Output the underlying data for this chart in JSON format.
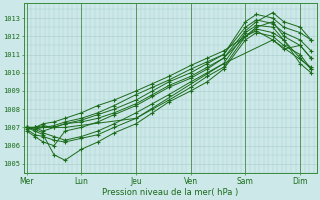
{
  "background_color": "#cce8e8",
  "grid_color": "#aacccc",
  "line_color": "#1a6b1a",
  "marker_color": "#1a6b1a",
  "xlabel": "Pression niveau de la mer( hPa )",
  "ylim": [
    1004.5,
    1013.8
  ],
  "yticks": [
    1005,
    1006,
    1007,
    1008,
    1009,
    1010,
    1011,
    1012,
    1013
  ],
  "day_labels": [
    "Mer",
    "Lun",
    "Jeu",
    "Ven",
    "Sam",
    "Dim"
  ],
  "day_positions": [
    0,
    1,
    2,
    3,
    4,
    5
  ],
  "xlim": [
    -0.05,
    5.3
  ],
  "lines": [
    {
      "x": [
        0.0,
        0.15,
        0.3,
        0.5,
        0.7,
        1.0,
        1.3,
        1.6,
        2.0,
        2.3,
        2.6,
        3.0,
        3.3,
        3.6,
        4.0,
        4.2,
        4.5,
        4.7,
        5.0,
        5.2
      ],
      "y": [
        1007.0,
        1006.9,
        1007.0,
        1007.1,
        1007.3,
        1007.5,
        1007.8,
        1008.2,
        1008.8,
        1009.2,
        1009.6,
        1010.2,
        1010.6,
        1011.0,
        1012.8,
        1013.2,
        1013.0,
        1012.5,
        1012.2,
        1011.8
      ]
    },
    {
      "x": [
        0.0,
        0.15,
        0.3,
        0.5,
        0.7,
        1.0,
        1.3,
        1.6,
        2.0,
        2.3,
        2.6,
        3.0,
        3.3,
        3.6,
        4.0,
        4.2,
        4.5,
        4.7,
        5.0,
        5.2
      ],
      "y": [
        1006.9,
        1006.6,
        1006.5,
        1006.3,
        1006.2,
        1006.4,
        1006.6,
        1007.0,
        1007.5,
        1008.0,
        1008.5,
        1009.2,
        1009.8,
        1010.3,
        1012.0,
        1012.5,
        1012.8,
        1012.0,
        1011.5,
        1010.8
      ]
    },
    {
      "x": [
        0.0,
        0.15,
        0.3,
        0.5,
        0.7,
        1.0,
        1.3,
        1.6,
        2.0,
        2.3,
        2.6,
        3.0,
        3.3,
        3.6,
        4.0,
        4.2,
        4.5,
        4.7,
        5.0,
        5.2
      ],
      "y": [
        1007.0,
        1007.0,
        1006.8,
        1007.0,
        1007.2,
        1007.3,
        1007.5,
        1007.8,
        1008.3,
        1008.8,
        1009.3,
        1009.8,
        1010.3,
        1010.8,
        1012.3,
        1012.8,
        1013.3,
        1012.8,
        1012.5,
        1011.8
      ]
    },
    {
      "x": [
        0.0,
        0.15,
        0.3,
        0.5,
        0.7,
        1.0,
        1.3,
        1.6,
        2.0,
        2.3,
        2.6,
        3.0,
        3.3,
        3.6,
        4.0,
        4.2,
        4.5,
        4.7,
        5.0,
        5.2
      ],
      "y": [
        1007.0,
        1006.8,
        1006.6,
        1005.5,
        1005.2,
        1005.8,
        1006.2,
        1006.7,
        1007.2,
        1007.8,
        1008.4,
        1009.0,
        1009.5,
        1010.2,
        1011.8,
        1012.2,
        1012.0,
        1011.5,
        1011.0,
        1010.2
      ]
    },
    {
      "x": [
        0.0,
        0.15,
        0.3,
        0.5,
        0.7,
        1.0,
        1.3,
        1.6,
        2.0,
        2.3,
        2.6,
        3.0,
        3.3,
        3.6,
        4.0,
        4.2,
        4.5,
        4.7,
        5.0,
        5.2
      ],
      "y": [
        1007.0,
        1007.0,
        1007.1,
        1007.0,
        1007.2,
        1007.4,
        1007.7,
        1008.0,
        1008.5,
        1009.0,
        1009.5,
        1010.0,
        1010.5,
        1011.0,
        1012.5,
        1012.9,
        1012.7,
        1012.2,
        1011.8,
        1011.2
      ]
    },
    {
      "x": [
        0.0,
        0.15,
        0.3,
        0.5,
        0.7,
        1.0,
        1.3,
        1.6,
        2.0,
        2.3,
        2.6,
        3.0,
        3.3,
        3.6,
        4.0,
        4.2,
        4.5,
        4.7,
        5.0,
        5.2
      ],
      "y": [
        1006.8,
        1006.5,
        1006.2,
        1006.0,
        1006.8,
        1007.0,
        1007.3,
        1007.7,
        1008.2,
        1008.7,
        1009.2,
        1009.7,
        1010.2,
        1010.8,
        1012.0,
        1012.4,
        1012.2,
        1011.8,
        1010.5,
        1010.0
      ]
    },
    {
      "x": [
        0.0,
        0.15,
        0.3,
        0.5,
        0.7,
        1.0,
        1.3,
        1.6,
        2.0,
        2.3,
        2.6,
        3.0,
        3.3,
        3.6,
        4.0,
        4.2,
        4.5,
        4.7,
        5.0,
        5.2
      ],
      "y": [
        1007.0,
        1006.9,
        1006.7,
        1006.5,
        1006.3,
        1006.5,
        1006.8,
        1007.2,
        1007.8,
        1008.3,
        1008.8,
        1009.5,
        1010.0,
        1010.5,
        1012.2,
        1012.6,
        1012.5,
        1011.8,
        1010.8,
        1010.2
      ]
    },
    {
      "x": [
        0.0,
        0.15,
        0.3,
        0.5,
        0.7,
        1.0,
        1.3,
        1.6,
        2.0,
        2.3,
        2.6,
        3.0,
        3.3,
        3.6,
        4.0,
        4.2,
        4.5,
        4.7,
        5.0,
        5.2
      ],
      "y": [
        1007.0,
        1007.0,
        1007.2,
        1007.3,
        1007.5,
        1007.8,
        1008.2,
        1008.5,
        1009.0,
        1009.4,
        1009.8,
        1010.4,
        1010.8,
        1011.2,
        1012.0,
        1012.3,
        1011.8,
        1011.3,
        1011.5,
        1010.8
      ]
    },
    {
      "x": [
        0.0,
        0.7,
        2.0,
        3.6,
        4.5,
        5.2
      ],
      "y": [
        1007.0,
        1007.0,
        1007.5,
        1010.5,
        1011.8,
        1010.3
      ]
    }
  ]
}
